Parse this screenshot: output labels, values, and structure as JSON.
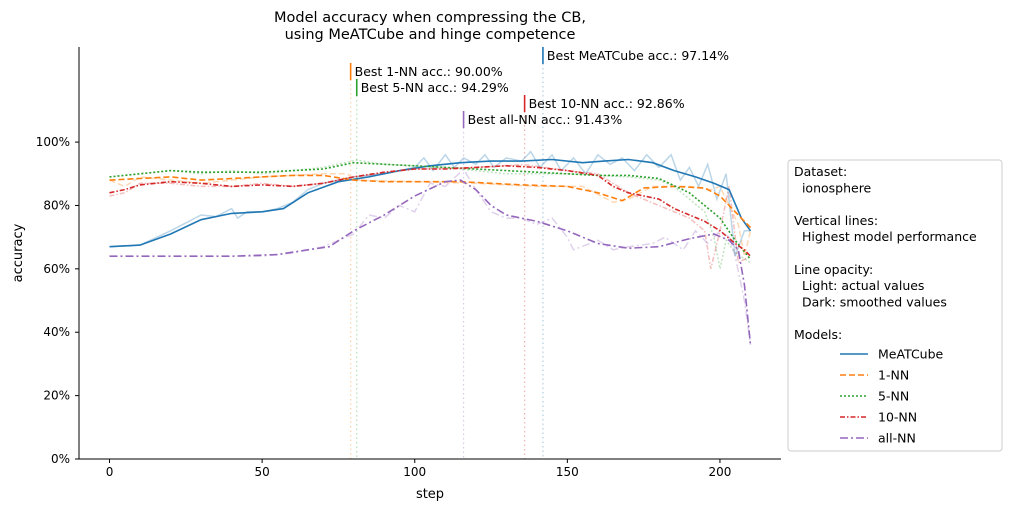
{
  "chart_data": {
    "type": "line",
    "title_lines": [
      "Model accuracy when compressing the CB,",
      "using MeATCube and hinge competence"
    ],
    "xlabel": "step",
    "ylabel": "accuracy",
    "xlim": [
      -10,
      220
    ],
    "ylim": [
      0,
      1.3
    ],
    "xticks": [
      0,
      50,
      100,
      150,
      200
    ],
    "yticks": [
      0,
      0.2,
      0.4,
      0.6,
      0.8,
      1.0
    ],
    "ytick_labels": [
      "0%",
      "20%",
      "40%",
      "60%",
      "80%",
      "100%"
    ],
    "grid": false,
    "series": [
      {
        "name": "MeATCube",
        "color": "#1f77b4",
        "dash": "",
        "smoothed": [
          [
            0,
            0.67
          ],
          [
            10,
            0.675
          ],
          [
            20,
            0.71
          ],
          [
            30,
            0.755
          ],
          [
            40,
            0.775
          ],
          [
            50,
            0.78
          ],
          [
            57,
            0.79
          ],
          [
            65,
            0.84
          ],
          [
            75,
            0.875
          ],
          [
            85,
            0.89
          ],
          [
            95,
            0.91
          ],
          [
            105,
            0.925
          ],
          [
            115,
            0.935
          ],
          [
            125,
            0.94
          ],
          [
            135,
            0.94
          ],
          [
            145,
            0.945
          ],
          [
            155,
            0.935
          ],
          [
            162,
            0.94
          ],
          [
            170,
            0.945
          ],
          [
            178,
            0.935
          ],
          [
            185,
            0.91
          ],
          [
            192,
            0.89
          ],
          [
            198,
            0.87
          ],
          [
            203,
            0.85
          ],
          [
            207,
            0.76
          ],
          [
            210,
            0.72
          ]
        ],
        "actual": [
          [
            0,
            0.67
          ],
          [
            10,
            0.675
          ],
          [
            20,
            0.72
          ],
          [
            25,
            0.745
          ],
          [
            30,
            0.77
          ],
          [
            35,
            0.765
          ],
          [
            40,
            0.79
          ],
          [
            42,
            0.76
          ],
          [
            45,
            0.78
          ],
          [
            50,
            0.78
          ],
          [
            55,
            0.79
          ],
          [
            60,
            0.81
          ],
          [
            65,
            0.85
          ],
          [
            70,
            0.87
          ],
          [
            75,
            0.88
          ],
          [
            80,
            0.89
          ],
          [
            90,
            0.9
          ],
          [
            100,
            0.92
          ],
          [
            103,
            0.95
          ],
          [
            106,
            0.91
          ],
          [
            110,
            0.96
          ],
          [
            113,
            0.92
          ],
          [
            116,
            0.95
          ],
          [
            120,
            0.93
          ],
          [
            123,
            0.96
          ],
          [
            126,
            0.92
          ],
          [
            130,
            0.95
          ],
          [
            135,
            0.94
          ],
          [
            138,
            0.97
          ],
          [
            141,
            0.92
          ],
          [
            145,
            0.96
          ],
          [
            148,
            0.91
          ],
          [
            152,
            0.95
          ],
          [
            156,
            0.9
          ],
          [
            160,
            0.96
          ],
          [
            164,
            0.93
          ],
          [
            168,
            0.95
          ],
          [
            172,
            0.91
          ],
          [
            176,
            0.96
          ],
          [
            180,
            0.92
          ],
          [
            184,
            0.96
          ],
          [
            187,
            0.88
          ],
          [
            190,
            0.92
          ],
          [
            193,
            0.86
          ],
          [
            196,
            0.93
          ],
          [
            199,
            0.82
          ],
          [
            202,
            0.9
          ],
          [
            205,
            0.64
          ],
          [
            208,
            0.72
          ],
          [
            210,
            0.72
          ]
        ],
        "best": {
          "step": 142,
          "label": "Best MeATCube acc.: 97.14%"
        }
      },
      {
        "name": "1-NN",
        "color": "#ff7f0e",
        "dash": "6,3",
        "smoothed": [
          [
            0,
            0.88
          ],
          [
            10,
            0.885
          ],
          [
            20,
            0.89
          ],
          [
            30,
            0.88
          ],
          [
            40,
            0.885
          ],
          [
            50,
            0.89
          ],
          [
            60,
            0.895
          ],
          [
            70,
            0.895
          ],
          [
            80,
            0.88
          ],
          [
            90,
            0.875
          ],
          [
            100,
            0.875
          ],
          [
            115,
            0.875
          ],
          [
            125,
            0.87
          ],
          [
            135,
            0.865
          ],
          [
            150,
            0.86
          ],
          [
            160,
            0.84
          ],
          [
            168,
            0.815
          ],
          [
            175,
            0.855
          ],
          [
            185,
            0.86
          ],
          [
            195,
            0.855
          ],
          [
            200,
            0.83
          ],
          [
            205,
            0.78
          ],
          [
            210,
            0.73
          ]
        ],
        "actual": [
          [
            0,
            0.88
          ],
          [
            5,
            0.86
          ],
          [
            10,
            0.89
          ],
          [
            20,
            0.88
          ],
          [
            30,
            0.87
          ],
          [
            50,
            0.89
          ],
          [
            70,
            0.9
          ],
          [
            78,
            0.9
          ],
          [
            80,
            0.88
          ],
          [
            100,
            0.875
          ],
          [
            120,
            0.87
          ],
          [
            140,
            0.86
          ],
          [
            150,
            0.86
          ],
          [
            155,
            0.86
          ],
          [
            165,
            0.81
          ],
          [
            170,
            0.82
          ],
          [
            178,
            0.86
          ],
          [
            190,
            0.86
          ],
          [
            197,
            0.85
          ],
          [
            200,
            0.86
          ],
          [
            203,
            0.8
          ],
          [
            206,
            0.74
          ],
          [
            208,
            0.64
          ],
          [
            210,
            0.72
          ]
        ],
        "best": {
          "step": 79,
          "label": "Best 1-NN acc.: 90.00%"
        }
      },
      {
        "name": "5-NN",
        "color": "#2ca02c",
        "dash": "2,2",
        "smoothed": [
          [
            0,
            0.89
          ],
          [
            10,
            0.9
          ],
          [
            20,
            0.91
          ],
          [
            30,
            0.905
          ],
          [
            40,
            0.905
          ],
          [
            50,
            0.905
          ],
          [
            60,
            0.91
          ],
          [
            70,
            0.915
          ],
          [
            80,
            0.935
          ],
          [
            90,
            0.93
          ],
          [
            100,
            0.925
          ],
          [
            110,
            0.92
          ],
          [
            120,
            0.915
          ],
          [
            130,
            0.91
          ],
          [
            140,
            0.905
          ],
          [
            150,
            0.9
          ],
          [
            160,
            0.895
          ],
          [
            170,
            0.895
          ],
          [
            180,
            0.885
          ],
          [
            190,
            0.84
          ],
          [
            195,
            0.8
          ],
          [
            200,
            0.76
          ],
          [
            205,
            0.69
          ],
          [
            210,
            0.63
          ]
        ],
        "actual": [
          [
            0,
            0.89
          ],
          [
            10,
            0.9
          ],
          [
            20,
            0.91
          ],
          [
            30,
            0.9
          ],
          [
            40,
            0.91
          ],
          [
            50,
            0.9
          ],
          [
            60,
            0.91
          ],
          [
            70,
            0.92
          ],
          [
            81,
            0.943
          ],
          [
            90,
            0.93
          ],
          [
            110,
            0.92
          ],
          [
            130,
            0.9
          ],
          [
            150,
            0.9
          ],
          [
            170,
            0.89
          ],
          [
            180,
            0.88
          ],
          [
            185,
            0.86
          ],
          [
            190,
            0.82
          ],
          [
            195,
            0.78
          ],
          [
            198,
            0.7
          ],
          [
            200,
            0.6
          ],
          [
            202,
            0.69
          ],
          [
            205,
            0.65
          ],
          [
            210,
            0.62
          ]
        ],
        "best": {
          "step": 81,
          "label": "Best 5-NN acc.: 94.29%"
        }
      },
      {
        "name": "10-NN",
        "color": "#d62728",
        "dash": "5,2,1.5,2",
        "smoothed": [
          [
            0,
            0.84
          ],
          [
            5,
            0.85
          ],
          [
            10,
            0.865
          ],
          [
            20,
            0.875
          ],
          [
            30,
            0.87
          ],
          [
            40,
            0.86
          ],
          [
            50,
            0.865
          ],
          [
            60,
            0.86
          ],
          [
            70,
            0.87
          ],
          [
            80,
            0.89
          ],
          [
            90,
            0.905
          ],
          [
            100,
            0.915
          ],
          [
            110,
            0.915
          ],
          [
            120,
            0.92
          ],
          [
            130,
            0.925
          ],
          [
            140,
            0.92
          ],
          [
            150,
            0.91
          ],
          [
            160,
            0.895
          ],
          [
            165,
            0.86
          ],
          [
            170,
            0.84
          ],
          [
            180,
            0.82
          ],
          [
            185,
            0.79
          ],
          [
            195,
            0.75
          ],
          [
            200,
            0.72
          ],
          [
            205,
            0.68
          ],
          [
            208,
            0.66
          ],
          [
            210,
            0.64
          ]
        ],
        "actual": [
          [
            0,
            0.83
          ],
          [
            5,
            0.84
          ],
          [
            10,
            0.87
          ],
          [
            20,
            0.87
          ],
          [
            30,
            0.86
          ],
          [
            40,
            0.86
          ],
          [
            50,
            0.87
          ],
          [
            60,
            0.86
          ],
          [
            70,
            0.87
          ],
          [
            80,
            0.89
          ],
          [
            100,
            0.915
          ],
          [
            120,
            0.92
          ],
          [
            136,
            0.929
          ],
          [
            150,
            0.91
          ],
          [
            160,
            0.9
          ],
          [
            170,
            0.84
          ],
          [
            180,
            0.8
          ],
          [
            190,
            0.76
          ],
          [
            195,
            0.72
          ],
          [
            197,
            0.6
          ],
          [
            200,
            0.72
          ],
          [
            203,
            0.86
          ],
          [
            206,
            0.62
          ],
          [
            210,
            0.64
          ]
        ],
        "best": {
          "step": 136,
          "label": "Best 10-NN acc.: 92.86%"
        }
      },
      {
        "name": "all-NN",
        "color": "#9467bd",
        "dash": "8,3,2,3",
        "smoothed": [
          [
            0,
            0.64
          ],
          [
            20,
            0.64
          ],
          [
            40,
            0.64
          ],
          [
            55,
            0.645
          ],
          [
            65,
            0.66
          ],
          [
            72,
            0.67
          ],
          [
            80,
            0.72
          ],
          [
            90,
            0.77
          ],
          [
            100,
            0.83
          ],
          [
            110,
            0.875
          ],
          [
            115,
            0.88
          ],
          [
            120,
            0.85
          ],
          [
            125,
            0.8
          ],
          [
            130,
            0.77
          ],
          [
            140,
            0.75
          ],
          [
            150,
            0.72
          ],
          [
            160,
            0.68
          ],
          [
            170,
            0.665
          ],
          [
            180,
            0.67
          ],
          [
            190,
            0.695
          ],
          [
            198,
            0.71
          ],
          [
            203,
            0.69
          ],
          [
            206,
            0.66
          ],
          [
            208,
            0.55
          ],
          [
            210,
            0.36
          ]
        ],
        "actual": [
          [
            0,
            0.64
          ],
          [
            50,
            0.64
          ],
          [
            60,
            0.65
          ],
          [
            70,
            0.67
          ],
          [
            80,
            0.71
          ],
          [
            85,
            0.77
          ],
          [
            90,
            0.76
          ],
          [
            95,
            0.8
          ],
          [
            100,
            0.78
          ],
          [
            105,
            0.87
          ],
          [
            110,
            0.86
          ],
          [
            116,
            0.914
          ],
          [
            120,
            0.85
          ],
          [
            125,
            0.78
          ],
          [
            130,
            0.76
          ],
          [
            135,
            0.76
          ],
          [
            140,
            0.74
          ],
          [
            145,
            0.76
          ],
          [
            150,
            0.7
          ],
          [
            152,
            0.66
          ],
          [
            160,
            0.69
          ],
          [
            165,
            0.66
          ],
          [
            170,
            0.67
          ],
          [
            178,
            0.68
          ],
          [
            182,
            0.7
          ],
          [
            188,
            0.66
          ],
          [
            192,
            0.72
          ],
          [
            196,
            0.68
          ],
          [
            200,
            0.72
          ],
          [
            203,
            0.7
          ],
          [
            205,
            0.64
          ],
          [
            208,
            0.5
          ],
          [
            210,
            0.36
          ]
        ],
        "best": {
          "step": 116,
          "label": "Best all-NN acc.: 91.43%"
        }
      }
    ],
    "legend": {
      "placement": "right",
      "lines": [
        "Dataset:",
        "  ionosphere",
        "",
        "Vertical lines:",
        "  Highest model performance",
        "",
        "Line opacity:",
        "  Light: actual values",
        "  Dark: smoothed values",
        "",
        "Models:"
      ]
    }
  }
}
